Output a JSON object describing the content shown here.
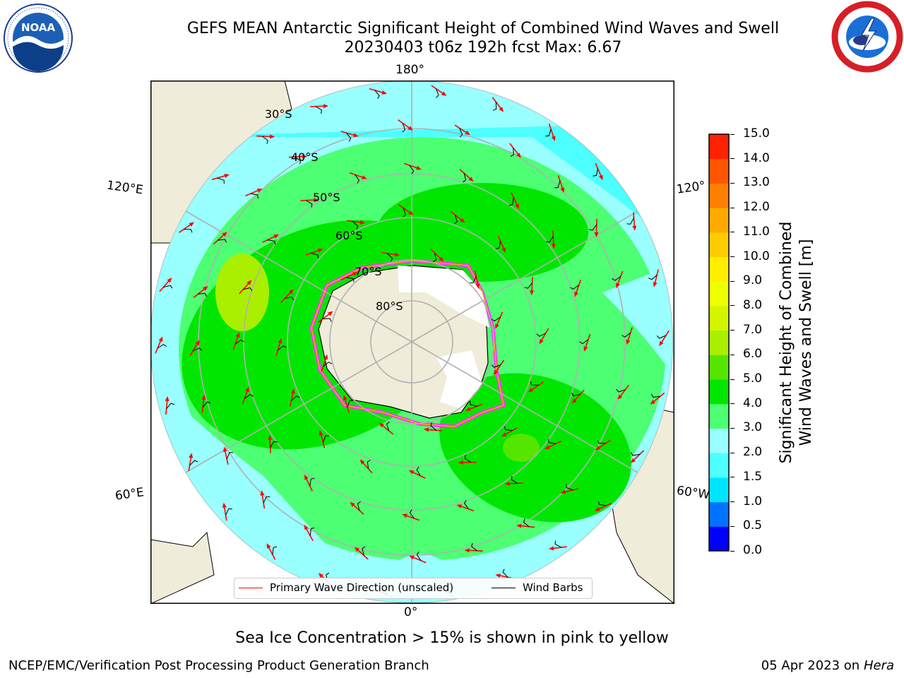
{
  "title": {
    "line1": "GEFS MEAN Antarctic Significant Height of Combined Wind Waves and Swell",
    "line2": "20230403 t06z 192h fcst   Max: 6.67"
  },
  "logos": {
    "left": {
      "icon": "noaa-logo",
      "text": "NOAA",
      "ring_text": "NATIONAL OCEANIC AND ATMOSPHERIC ADMINISTRATION · U.S. DEPARTMENT OF COMMERCE"
    },
    "right": {
      "icon": "nws-logo",
      "ring_text": "NATIONAL WEATHER SERVICE"
    }
  },
  "map": {
    "projection": "south-polar-stereographic",
    "longitude_labels": {
      "top": "180°",
      "bottom": "0°",
      "upper_left": "120°E",
      "lower_left": "60°E",
      "upper_right": "120°",
      "lower_right": "60°W"
    },
    "latitude_labels": [
      "30°S",
      "40°S",
      "50°S",
      "60°S",
      "70°S",
      "80°S"
    ],
    "colors": {
      "land": "#efecd9",
      "ice_edge": "#ff33ff",
      "grid": "#b0b0b0"
    }
  },
  "legend": {
    "items": [
      {
        "label": "Primary Wave Direction (unscaled)",
        "color": "#ff0000"
      },
      {
        "label": "Wind Barbs",
        "color": "#000000"
      }
    ]
  },
  "colorbar": {
    "label_line1": "Significant Height of Combined",
    "label_line2": "Wind Waves and Swell [m]",
    "ticks": [
      "0.0",
      "0.5",
      "1.0",
      "1.5",
      "2.0",
      "3.0",
      "4.0",
      "5.0",
      "6.0",
      "7.0",
      "8.0",
      "9.0",
      "10.0",
      "11.0",
      "12.0",
      "13.0",
      "14.0",
      "15.0"
    ],
    "colors": [
      "#0000ff",
      "#0073ff",
      "#00e5ff",
      "#4dffff",
      "#99ffff",
      "#4dff73",
      "#00e600",
      "#55e600",
      "#aaee00",
      "#d4f500",
      "#eeff00",
      "#ffee00",
      "#ffcc00",
      "#ffaa00",
      "#ff8000",
      "#ff5500",
      "#ff2200"
    ]
  },
  "note": "Sea Ice Concentration > 15% is shown in pink to yellow",
  "footer": {
    "left": "NCEP/EMC/Verification Post Processing Product Generation Branch",
    "right_date": "05 Apr 2023 on ",
    "right_host": "Hera"
  }
}
